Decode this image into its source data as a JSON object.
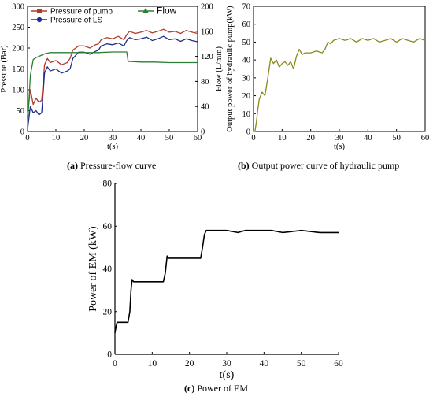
{
  "captions": {
    "a": {
      "tag": "(a)",
      "text": "Pressure-flow curve"
    },
    "b": {
      "tag": "(b)",
      "text": "Output power curve of hydraulic pump"
    },
    "c": {
      "tag": "(c)",
      "text": "Power of EM"
    }
  },
  "chart_data": [
    {
      "id": "a",
      "type": "line",
      "xlabel": "t(s)",
      "ylabel": "Pressure (Bar)",
      "y2label": "Flow (L/min)",
      "xlim": [
        0,
        60
      ],
      "ylim": [
        0,
        300
      ],
      "y2lim": [
        0,
        200
      ],
      "xticks": [
        "0",
        "10",
        "20",
        "30",
        "40",
        "50",
        "60"
      ],
      "yticks": [
        "0",
        "50",
        "100",
        "150",
        "200",
        "250",
        "300"
      ],
      "y2ticks": [
        "0",
        "40",
        "80",
        "120",
        "160",
        "200"
      ],
      "legend_position": "top",
      "series": [
        {
          "name": "Pressure of pump",
          "axis": "left",
          "color": "#b03a2e",
          "marker": "square",
          "x": [
            0,
            1,
            2,
            3,
            4,
            5,
            6,
            7,
            8,
            10,
            12,
            14,
            15,
            16,
            18,
            20,
            22,
            24,
            25,
            26,
            28,
            30,
            32,
            34,
            35,
            36,
            38,
            40,
            42,
            44,
            46,
            48,
            50,
            52,
            54,
            56,
            58,
            60
          ],
          "y": [
            40,
            100,
            65,
            80,
            70,
            75,
            160,
            175,
            165,
            170,
            160,
            165,
            175,
            195,
            205,
            205,
            200,
            208,
            210,
            220,
            225,
            222,
            228,
            220,
            232,
            240,
            235,
            238,
            242,
            236,
            240,
            245,
            238,
            240,
            235,
            242,
            238,
            235
          ]
        },
        {
          "name": "Pressure of LS",
          "axis": "left",
          "color": "#1f2d8a",
          "marker": "circle",
          "x": [
            0,
            1,
            2,
            3,
            4,
            5,
            6,
            7,
            8,
            10,
            12,
            14,
            15,
            16,
            18,
            20,
            22,
            24,
            25,
            26,
            28,
            30,
            32,
            34,
            35,
            36,
            38,
            40,
            42,
            44,
            46,
            48,
            50,
            52,
            54,
            56,
            58,
            60
          ],
          "y": [
            5,
            60,
            45,
            50,
            40,
            45,
            140,
            155,
            145,
            150,
            140,
            145,
            150,
            175,
            190,
            190,
            185,
            192,
            195,
            205,
            210,
            208,
            212,
            205,
            218,
            225,
            220,
            222,
            226,
            218,
            222,
            228,
            220,
            222,
            216,
            222,
            218,
            215
          ]
        },
        {
          "name": "Flow",
          "axis": "right",
          "color": "#2e7d32",
          "marker": "triangle",
          "x": [
            0,
            1,
            2,
            3,
            4,
            5,
            6,
            8,
            10,
            15,
            20,
            25,
            30,
            35,
            35.5,
            40,
            45,
            50,
            55,
            60
          ],
          "y": [
            10,
            90,
            115,
            118,
            120,
            122,
            124,
            126,
            126,
            126,
            126,
            126,
            127,
            127,
            112,
            111,
            111,
            110,
            110,
            110
          ]
        }
      ]
    },
    {
      "id": "b",
      "type": "line",
      "xlabel": "t(s)",
      "ylabel": "Output power of hydraulic pump(kW)",
      "xlim": [
        0,
        60
      ],
      "ylim": [
        0,
        70
      ],
      "xticks": [
        "0",
        "10",
        "20",
        "30",
        "40",
        "50",
        "60"
      ],
      "yticks": [
        "0",
        "10",
        "20",
        "30",
        "40",
        "50",
        "60",
        "70"
      ],
      "series": [
        {
          "color": "#8a8a1a",
          "x": [
            0,
            0.5,
            1,
            1.5,
            2,
            3,
            4,
            5,
            6,
            7,
            8,
            9,
            10,
            11,
            12,
            13,
            14,
            15,
            16,
            17,
            18,
            20,
            22,
            24,
            25,
            26,
            27,
            28,
            30,
            32,
            34,
            36,
            38,
            40,
            42,
            44,
            46,
            48,
            50,
            52,
            54,
            56,
            58,
            60
          ],
          "y": [
            0,
            0,
            5,
            12,
            18,
            22,
            20,
            30,
            41,
            38,
            40,
            36,
            38,
            39,
            37,
            39,
            35,
            42,
            46,
            43,
            44,
            44,
            45,
            44,
            46,
            50,
            49,
            51,
            52,
            51,
            52,
            50,
            52,
            51,
            52,
            50,
            51,
            52,
            50,
            52,
            51,
            50,
            52,
            51
          ]
        }
      ]
    },
    {
      "id": "c",
      "type": "line",
      "xlabel": "t(s)",
      "ylabel": "Power of EM (kW)",
      "xlim": [
        0,
        60
      ],
      "ylim": [
        0,
        80
      ],
      "xticks": [
        "0",
        "10",
        "20",
        "30",
        "40",
        "50",
        "60"
      ],
      "yticks": [
        "0",
        "20",
        "40",
        "60",
        "80"
      ],
      "series": [
        {
          "color": "#000000",
          "x": [
            0,
            0.3,
            0.6,
            1,
            2,
            3,
            3.5,
            4,
            4.3,
            4.6,
            5,
            6,
            8,
            10,
            12,
            13,
            13.5,
            14,
            14.3,
            15,
            18,
            20,
            22,
            23,
            23.5,
            24,
            24.5,
            25,
            28,
            30,
            33,
            35,
            40,
            42,
            45,
            50,
            55,
            60
          ],
          "y": [
            10,
            13,
            15,
            15,
            15,
            15,
            15,
            20,
            30,
            35,
            34,
            34,
            34,
            34,
            34,
            34,
            38,
            46,
            45,
            45,
            45,
            45,
            45,
            45,
            50,
            56,
            58,
            58,
            58,
            58,
            57,
            58,
            58,
            58,
            57,
            58,
            57,
            57
          ]
        }
      ]
    }
  ]
}
